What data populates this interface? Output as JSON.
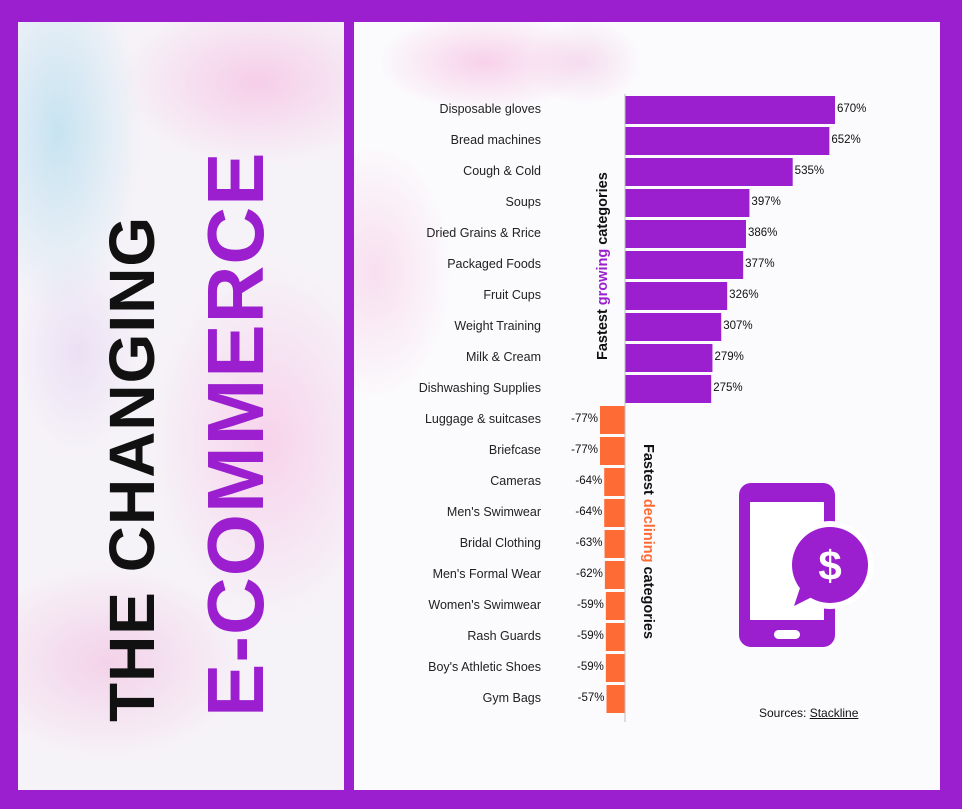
{
  "title": {
    "line1": "THE CHANGING",
    "line2": "E-COMMERCE"
  },
  "colors": {
    "frame": "#9b1fcf",
    "growing": "#9b1fcf",
    "declining": "#ff6b35",
    "text": "#111111"
  },
  "captions": {
    "growing": {
      "prefix": "Fastest ",
      "highlight": "growing",
      "suffix": " categories"
    },
    "declining": {
      "prefix": "Fastest ",
      "highlight": "declining",
      "suffix": " categories"
    }
  },
  "sources": {
    "label": "Sources:",
    "link": "Stackline"
  },
  "icon": {
    "name": "phone-dollar-icon",
    "color": "#9b1fcf"
  },
  "chart_data": {
    "type": "bar",
    "orientation": "horizontal",
    "unit": "%",
    "series": [
      {
        "group": "growing",
        "categories": [
          "Disposable gloves",
          "Bread machines",
          "Cough & Cold",
          "Soups",
          "Dried Grains & Rrice",
          "Packaged Foods",
          "Fruit Cups",
          "Weight Training",
          "Milk & Cream",
          "Dishwashing Supplies"
        ],
        "values": [
          670,
          652,
          535,
          397,
          386,
          377,
          326,
          307,
          279,
          275
        ],
        "labels": [
          "670%",
          "652%",
          "535%",
          "397%",
          "386%",
          "377%",
          "326%",
          "307%",
          "279%",
          "275%"
        ]
      },
      {
        "group": "declining",
        "categories": [
          "Luggage & suitcases",
          "Briefcase",
          "Cameras",
          "Men's Swimwear",
          "Bridal Clothing",
          "Men's Formal Wear",
          "Women's Swimwear",
          "Rash Guards",
          "Boy's Athletic Shoes",
          "Gym Bags"
        ],
        "values": [
          -77,
          -77,
          -64,
          -64,
          -63,
          -62,
          -59,
          -59,
          -59,
          -57
        ],
        "labels": [
          "-77%",
          "-77%",
          "-64%",
          "-64%",
          "-63%",
          "-62%",
          "-59%",
          "-59%",
          "-59%",
          "-57%"
        ]
      }
    ]
  }
}
